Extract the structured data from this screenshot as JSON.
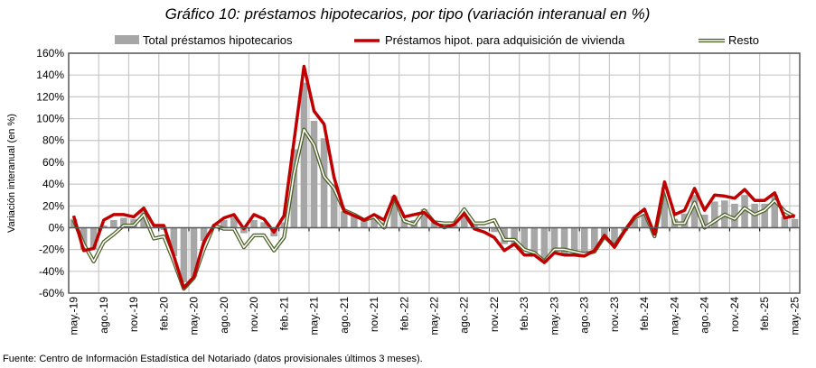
{
  "chart_data": {
    "type": "bar+line",
    "title": "Gráfico 10: préstamos hipotecarios, por tipo (variación interanual en %)",
    "ylabel": "Variación interanual (en %)",
    "xlabel": "",
    "ylim": [
      -60,
      160
    ],
    "yticks": [
      -60,
      -40,
      -20,
      0,
      20,
      40,
      60,
      80,
      100,
      120,
      140,
      160
    ],
    "ytick_labels": [
      "-60%",
      "-40%",
      "-20%",
      "0%",
      "20%",
      "40%",
      "60%",
      "80%",
      "100%",
      "120%",
      "140%",
      "160%"
    ],
    "grid": true,
    "legend_position": "top",
    "x_tick_labels": [
      "may.-19",
      "ago.-19",
      "nov.-19",
      "feb.-20",
      "may.-20",
      "ago.-20",
      "nov.-20",
      "feb.-21",
      "may.-21",
      "ago.-21",
      "nov.-21",
      "feb.-22",
      "may.-22",
      "ago.-22",
      "nov.-22",
      "feb.-23",
      "may.-23",
      "ago.-23",
      "nov.-23",
      "feb.-24",
      "may.-24",
      "ago.-24",
      "nov.-24",
      "feb.-25",
      "may.-25"
    ],
    "x_tick_every_months": 3,
    "n_months": 73,
    "series": [
      {
        "name": "Total préstamos hipotecarios",
        "kind": "bar",
        "color": "#a6a6a6",
        "values": [
          8,
          -20,
          -20,
          2,
          7,
          9,
          8,
          16,
          0,
          -2,
          -26,
          -50,
          -45,
          -12,
          0,
          7,
          10,
          -5,
          7,
          5,
          -8,
          5,
          72,
          133,
          98,
          82,
          40,
          15,
          12,
          7,
          10,
          5,
          29,
          8,
          7,
          17,
          6,
          3,
          3,
          16,
          2,
          -1,
          -4,
          -15,
          -16,
          -19,
          -24,
          -32,
          -24,
          -24,
          -23,
          -24,
          -20,
          -10,
          -15,
          -3,
          8,
          13,
          -5,
          37,
          8,
          13,
          30,
          12,
          24,
          25,
          22,
          30,
          22,
          22,
          30,
          10,
          8
        ]
      },
      {
        "name": "Préstamos hipot. para adquisición de vivienda",
        "kind": "line",
        "color": "#c00000",
        "values": [
          11,
          -21,
          -19,
          7,
          12,
          12,
          10,
          18,
          2,
          2,
          -26,
          -55,
          -45,
          -13,
          2,
          9,
          12,
          -1,
          12,
          8,
          -4,
          11,
          79,
          148,
          107,
          95,
          46,
          15,
          11,
          7,
          12,
          7,
          29,
          10,
          12,
          14,
          5,
          0,
          3,
          13,
          -1,
          -4,
          -9,
          -21,
          -15,
          -25,
          -25,
          -32,
          -23,
          -25,
          -25,
          -26,
          -21,
          -7,
          -18,
          -3,
          10,
          17,
          -6,
          42,
          12,
          16,
          36,
          16,
          30,
          29,
          27,
          35,
          25,
          25,
          32,
          9,
          11
        ]
      },
      {
        "name": "Resto",
        "kind": "line",
        "color": "#4f6228",
        "values": [
          7,
          -15,
          -31,
          -13,
          -6,
          2,
          2,
          12,
          -10,
          -8,
          -31,
          -56,
          -46,
          -20,
          2,
          -1,
          -1,
          -18,
          -7,
          -7,
          -21,
          -9,
          49,
          90,
          76,
          47,
          36,
          16,
          12,
          7,
          10,
          0,
          28,
          6,
          3,
          16,
          5,
          4,
          4,
          17,
          4,
          4,
          7,
          -11,
          -11,
          -20,
          -23,
          -31,
          -20,
          -20,
          -22,
          -24,
          -22,
          -8,
          -17,
          -3,
          9,
          14,
          -8,
          37,
          4,
          4,
          23,
          0,
          6,
          12,
          8,
          18,
          12,
          16,
          25,
          15,
          10
        ]
      }
    ],
    "source": "Fuente: Centro de Información Estadística del Notariado (datos provisionales últimos 3 meses)."
  }
}
